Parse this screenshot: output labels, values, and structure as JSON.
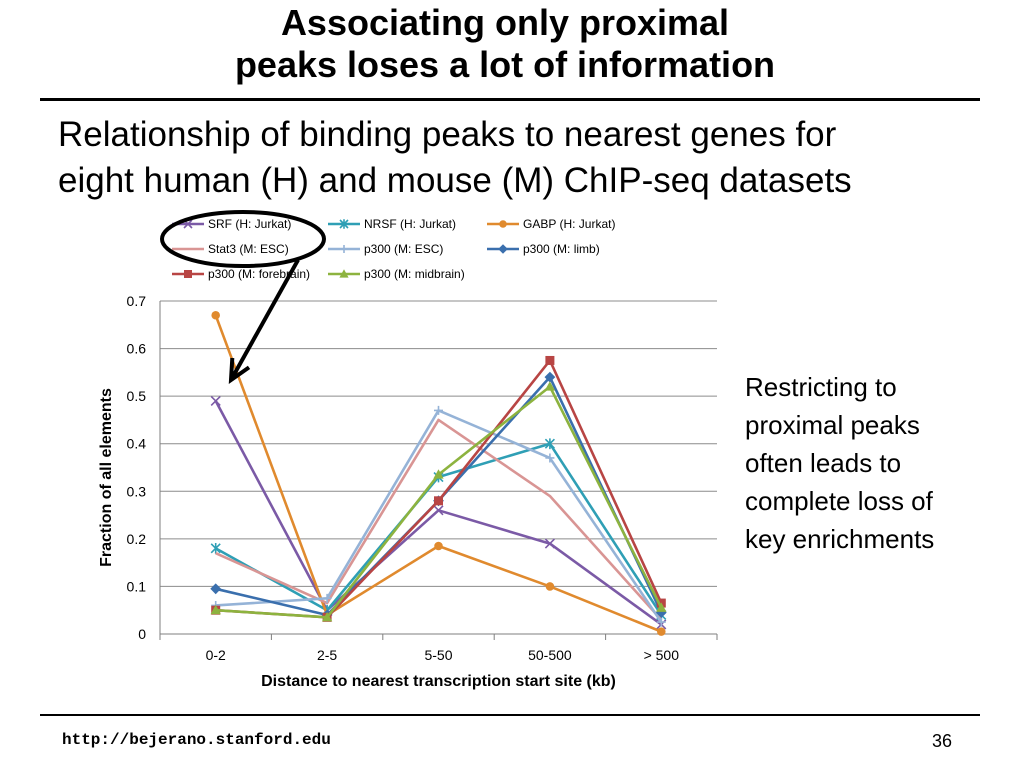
{
  "title": {
    "line1": "Associating only proximal",
    "line2": "peaks loses a lot of information"
  },
  "subtitle": {
    "line1": "Relationship of binding peaks to nearest genes for",
    "line2": "eight human (H) and mouse (M) ChIP-seq datasets"
  },
  "side_note": [
    "Restricting to",
    "proximal peaks",
    "often leads to",
    "complete loss of",
    "key enrichments"
  ],
  "footer": {
    "url": "http://bejerano.stanford.edu",
    "page_number": "36"
  },
  "chart_data": {
    "type": "line",
    "categories": [
      "0-2",
      "2-5",
      "5-50",
      "50-500",
      "> 500"
    ],
    "xlabel": "Distance to nearest transcription start site (kb)",
    "ylabel": "Fraction of all elements",
    "ylim": [
      0,
      0.7
    ],
    "yticks": [
      "0",
      "0.1",
      "0.2",
      "0.3",
      "0.4",
      "0.5",
      "0.6",
      "0.7"
    ],
    "grid": true,
    "legend_position": "top",
    "series": [
      {
        "name": "SRF (H: Jurkat)",
        "color": "#7b5aa6",
        "marker": "x",
        "values": [
          0.49,
          0.05,
          0.26,
          0.19,
          0.02
        ]
      },
      {
        "name": "NRSF (H: Jurkat)",
        "color": "#2f9fb5",
        "marker": "asterisk",
        "values": [
          0.18,
          0.05,
          0.33,
          0.4,
          0.04
        ]
      },
      {
        "name": "GABP (H: Jurkat)",
        "color": "#e08a2e",
        "marker": "circle",
        "values": [
          0.67,
          0.04,
          0.185,
          0.1,
          0.005
        ]
      },
      {
        "name": "Stat3 (M: ESC)",
        "color": "#d99594",
        "marker": "none",
        "values": [
          0.17,
          0.065,
          0.45,
          0.29,
          0.03
        ]
      },
      {
        "name": "p300 (M: ESC)",
        "color": "#95b3d7",
        "marker": "plus",
        "values": [
          0.06,
          0.075,
          0.47,
          0.37,
          0.025
        ]
      },
      {
        "name": "p300 (M: limb)",
        "color": "#3a6fad",
        "marker": "diamond",
        "values": [
          0.095,
          0.04,
          0.28,
          0.54,
          0.045
        ]
      },
      {
        "name": "p300 (M: forebrain)",
        "color": "#b84544",
        "marker": "square",
        "values": [
          0.05,
          0.035,
          0.28,
          0.575,
          0.065
        ]
      },
      {
        "name": "p300 (M: midbrain)",
        "color": "#8db33f",
        "marker": "triangle",
        "values": [
          0.05,
          0.035,
          0.335,
          0.52,
          0.055
        ]
      }
    ]
  }
}
